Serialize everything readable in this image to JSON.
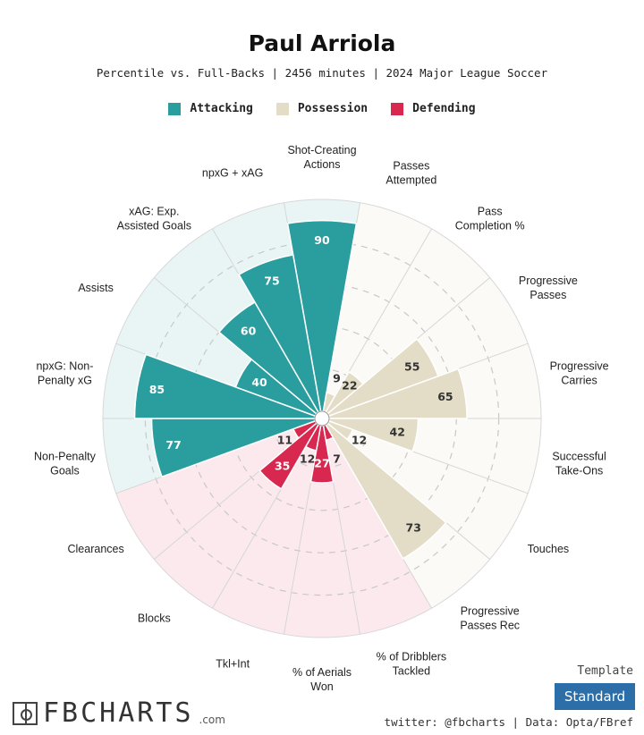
{
  "title": "Paul Arriola",
  "subtitle": "Percentile vs. Full-Backs | 2456 minutes | 2024 Major League Soccer",
  "legend": [
    {
      "label": "Attacking",
      "color": "#2a9d9f"
    },
    {
      "label": "Possession",
      "color": "#e3dcc6"
    },
    {
      "label": "Defending",
      "color": "#d8284f"
    }
  ],
  "chart_data": {
    "type": "polar-bar",
    "range": [
      0,
      100
    ],
    "grid": "dashed rings",
    "stats": [
      {
        "label": "Shot-Creating\nActions",
        "value": 90,
        "group": "Attacking"
      },
      {
        "label": "Passes\nAttempted",
        "value": 9,
        "group": "Possession"
      },
      {
        "label": "Pass\nCompletion %",
        "value": 22,
        "group": "Possession"
      },
      {
        "label": "Progressive\nPasses",
        "value": 55,
        "group": "Possession"
      },
      {
        "label": "Progressive\nCarries",
        "value": 65,
        "group": "Possession"
      },
      {
        "label": "Successful\nTake-Ons",
        "value": 42,
        "group": "Possession"
      },
      {
        "label": "Touches",
        "value": 12,
        "group": "Possession"
      },
      {
        "label": "Progressive\nPasses Rec",
        "value": 73,
        "group": "Possession"
      },
      {
        "label": "% of Dribblers\nTackled",
        "value": 7,
        "group": "Defending"
      },
      {
        "label": "% of Aerials\nWon",
        "value": 27,
        "group": "Defending"
      },
      {
        "label": "Tkl+Int",
        "value": 12,
        "group": "Defending"
      },
      {
        "label": "Blocks",
        "value": 35,
        "group": "Defending"
      },
      {
        "label": "Clearances",
        "value": 11,
        "group": "Defending"
      },
      {
        "label": "Non-Penalty\nGoals",
        "value": 77,
        "group": "Attacking"
      },
      {
        "label": "npxG: Non-\nPenalty xG",
        "value": 85,
        "group": "Attacking"
      },
      {
        "label": "Assists",
        "value": 40,
        "group": "Attacking"
      },
      {
        "label": "xAG: Exp.\nAssisted Goals",
        "value": 60,
        "group": "Attacking"
      },
      {
        "label": "npxG + xAG",
        "value": 75,
        "group": "Attacking"
      }
    ]
  },
  "footer": {
    "logo": "FBCHARTS",
    "logo_suffix": ".com",
    "template_label": "Template",
    "template_value": "Standard",
    "credit": "twitter: @fbcharts | Data: Opta/FBref"
  }
}
